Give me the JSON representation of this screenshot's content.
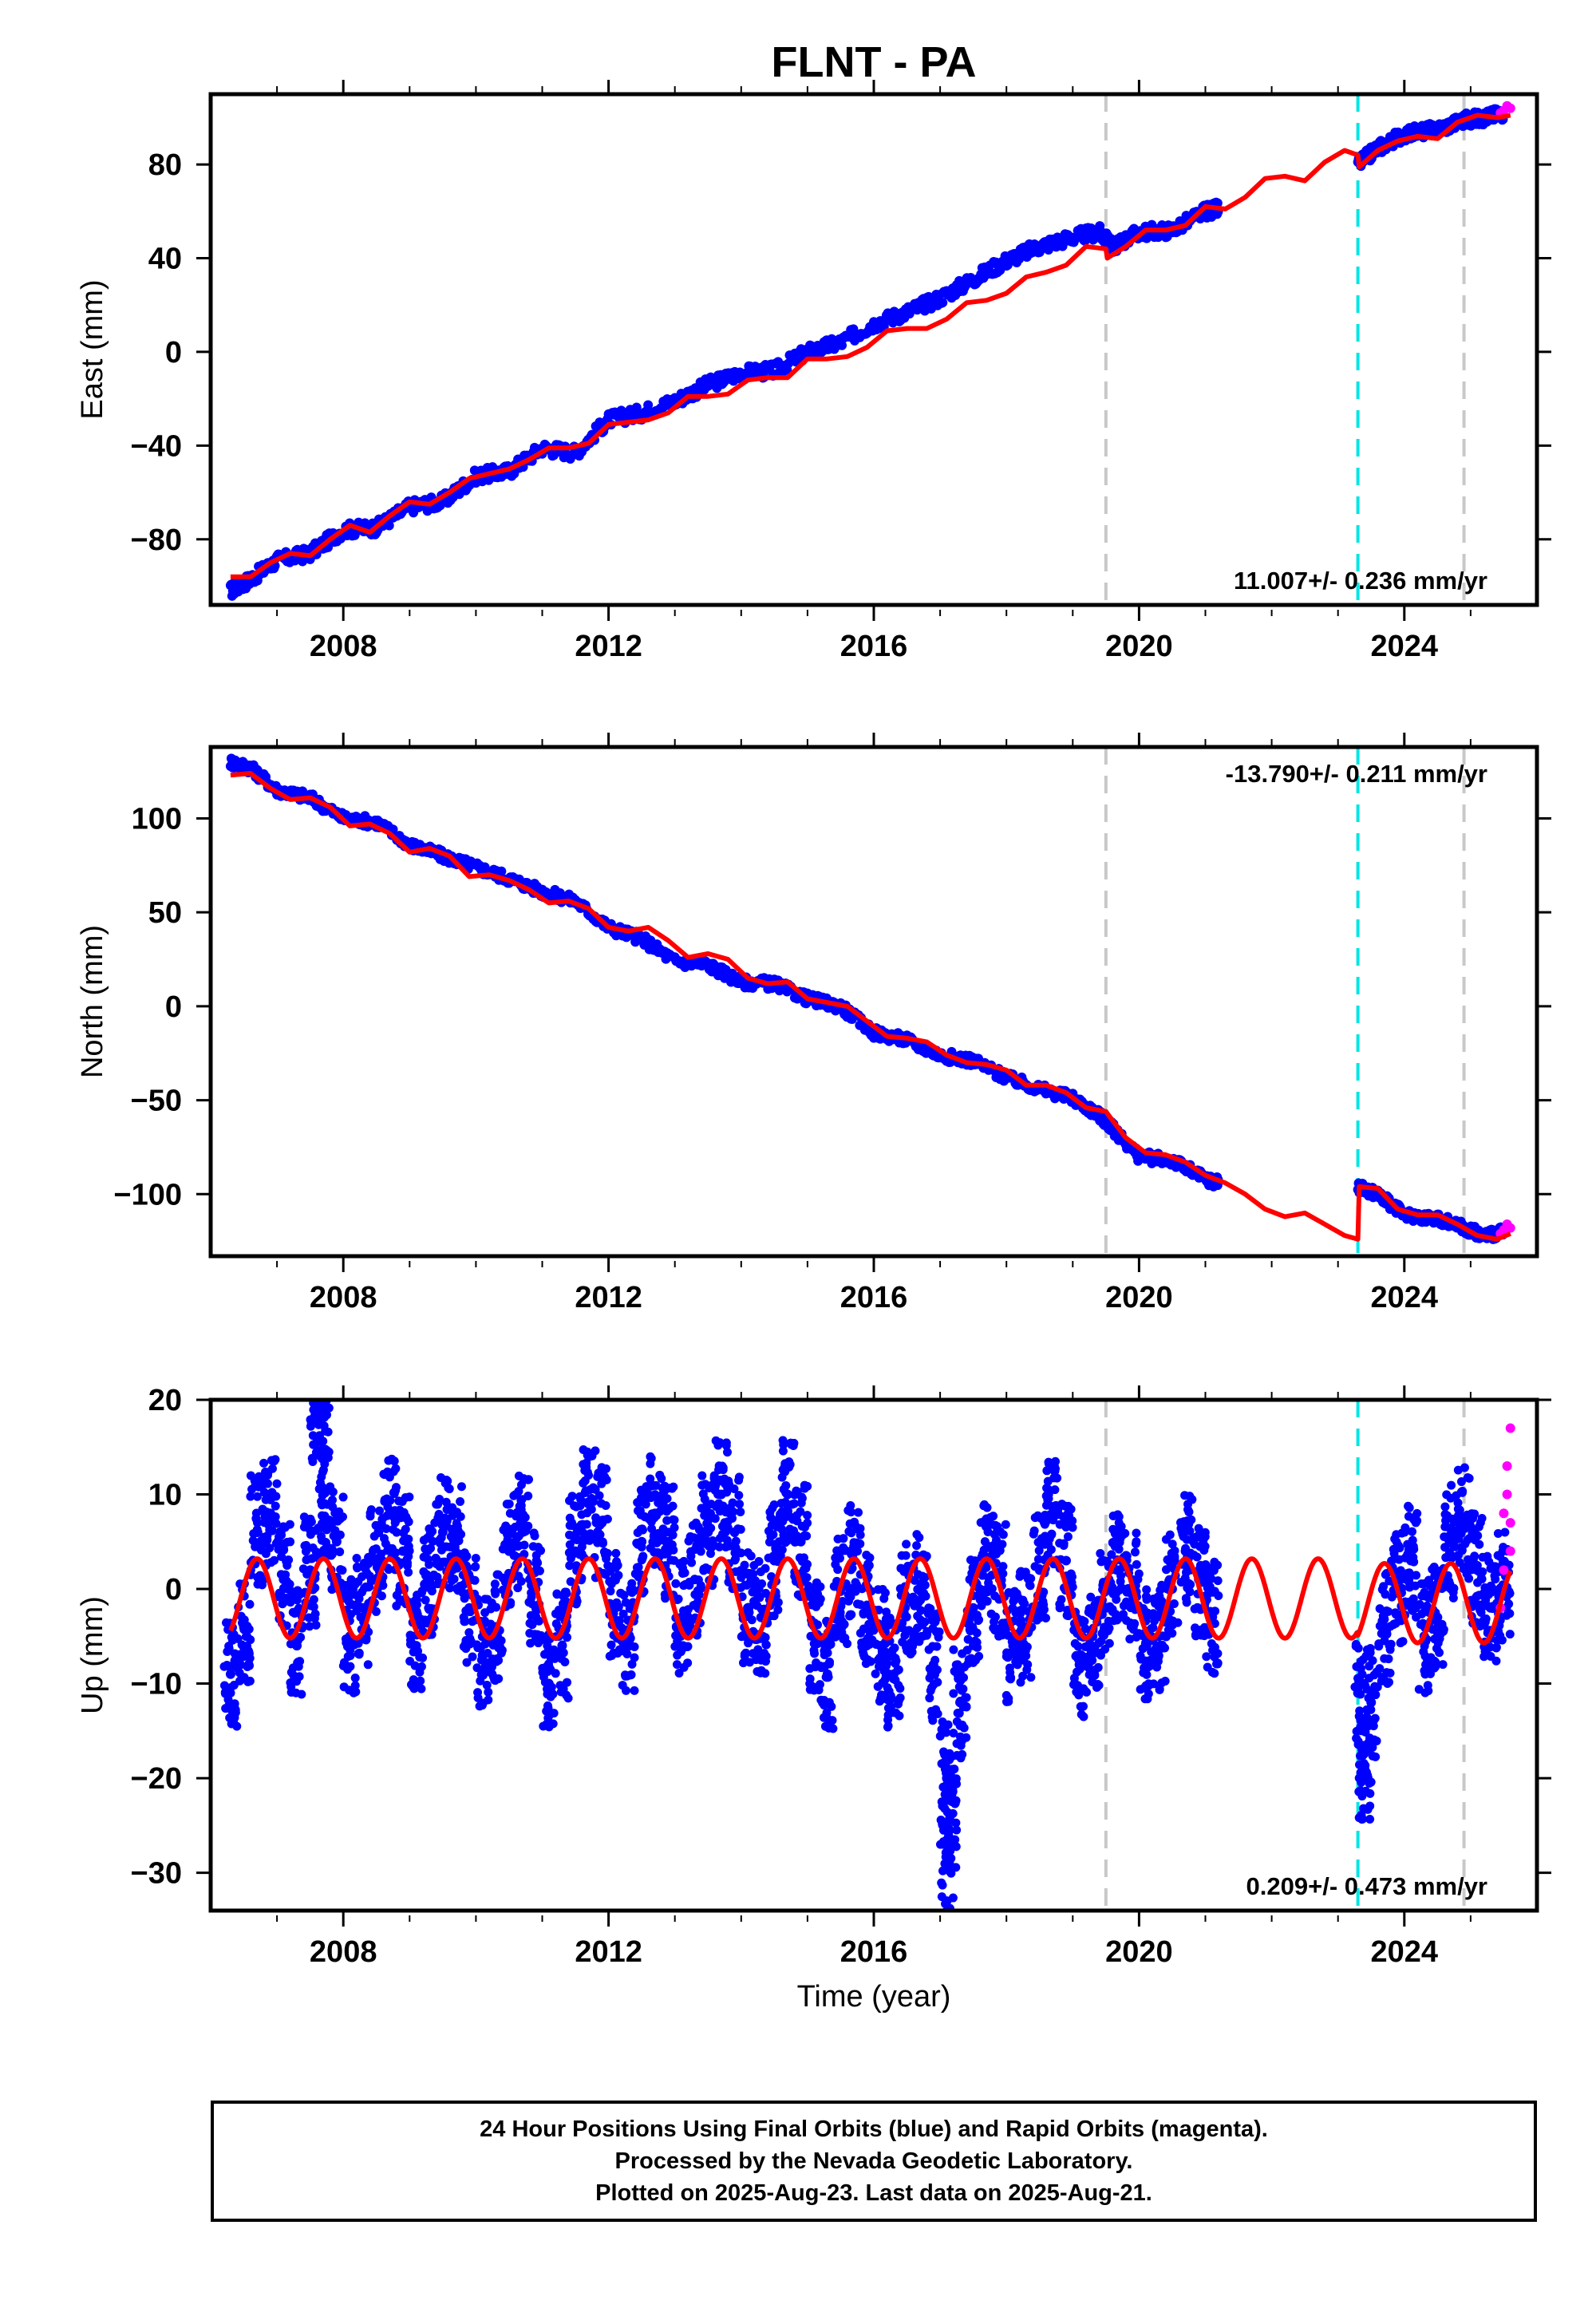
{
  "title": "FLNT - PA",
  "xlabel": "Time (year)",
  "colors": {
    "final_orbits": "#0000ff",
    "rapid_orbits": "#ff00ff",
    "model": "#ff0000",
    "antenna_change": "#c8c8c8",
    "earthquake": "#00e5e5"
  },
  "caption": {
    "line1": "24 Hour Positions Using Final Orbits (blue) and Rapid Orbits (magenta).",
    "line2": "Processed by the Nevada Geodetic Laboratory.",
    "line3": "Plotted on 2025-Aug-23. Last data on 2025-Aug-21."
  },
  "chart_data": [
    {
      "type": "scatter",
      "component": "east",
      "ylabel": "East (mm)",
      "rate_label": "11.007+/- 0.236 mm/yr",
      "rate_position": "bottom-right",
      "xlim": [
        2006.0,
        2026.0
      ],
      "ylim": [
        -108,
        110
      ],
      "xticks": [
        2008,
        2012,
        2016,
        2020,
        2024
      ],
      "yticks": [
        -80,
        -40,
        0,
        40,
        80
      ],
      "rate_mm_per_yr": 11.007,
      "rate_uncertainty": 0.236,
      "series": [
        {
          "name": "Final Orbits (blue)",
          "style": "points",
          "x": [
            2006.3,
            2006.6,
            2007.0,
            2007.5,
            2008.0,
            2008.5,
            2009.0,
            2009.5,
            2010.0,
            2010.5,
            2011.0,
            2011.5,
            2012.0,
            2012.5,
            2013.0,
            2013.5,
            2014.0,
            2014.5,
            2015.0,
            2015.5,
            2016.0,
            2016.5,
            2017.0,
            2017.5,
            2018.0,
            2018.5,
            2019.0,
            2019.4,
            2019.6,
            2020.0,
            2020.5,
            2021.0,
            2021.2,
            2023.3,
            2023.6,
            2024.0,
            2024.5,
            2024.9,
            2025.2,
            2025.5
          ],
          "y": [
            -102,
            -97,
            -89,
            -86,
            -76,
            -75,
            -66,
            -64,
            -53,
            -51,
            -41,
            -43,
            -29,
            -26,
            -21,
            -14,
            -9,
            -8,
            0,
            4,
            12,
            17,
            23,
            31,
            39,
            45,
            49,
            51,
            45,
            51,
            52,
            60,
            61,
            80,
            87,
            93,
            95,
            99,
            100,
            102
          ]
        },
        {
          "name": "Rapid Orbits (magenta)",
          "style": "points",
          "x": [
            2025.45,
            2025.5,
            2025.55,
            2025.6
          ],
          "y": [
            102,
            103,
            105,
            104
          ]
        },
        {
          "name": "Model",
          "style": "line",
          "x": [
            2006.3,
            2006.6,
            2006.9,
            2007.2,
            2007.5,
            2007.8,
            2008.1,
            2008.4,
            2008.7,
            2009.0,
            2009.3,
            2009.6,
            2009.9,
            2010.2,
            2010.5,
            2010.8,
            2011.1,
            2011.4,
            2011.7,
            2012.0,
            2012.3,
            2012.6,
            2012.9,
            2013.2,
            2013.5,
            2013.8,
            2014.1,
            2014.4,
            2014.7,
            2015.0,
            2015.3,
            2015.6,
            2015.9,
            2016.2,
            2016.5,
            2016.8,
            2017.1,
            2017.4,
            2017.7,
            2018.0,
            2018.3,
            2018.6,
            2018.9,
            2019.2,
            2019.5,
            2019.52,
            2019.8,
            2020.1,
            2020.4,
            2020.7,
            2021.0,
            2021.3,
            2021.6,
            2021.9,
            2022.2,
            2022.5,
            2022.8,
            2023.1,
            2023.3,
            2023.32,
            2023.6,
            2023.9,
            2024.2,
            2024.5,
            2024.8,
            2025.1,
            2025.4,
            2025.6
          ],
          "y": [
            -96,
            -96,
            -90,
            -86,
            -87,
            -80,
            -74,
            -77,
            -70,
            -64,
            -65,
            -60,
            -54,
            -52,
            -50,
            -46,
            -41,
            -41,
            -39,
            -31,
            -30,
            -29,
            -26,
            -19,
            -19,
            -18,
            -12,
            -11,
            -11,
            -3,
            -3,
            -2,
            2,
            9,
            10,
            10,
            14,
            21,
            22,
            25,
            32,
            34,
            37,
            45,
            44,
            40,
            45,
            52,
            52,
            54,
            62,
            61,
            66,
            74,
            75,
            73,
            81,
            86,
            84,
            79,
            86,
            90,
            92,
            91,
            98,
            101,
            100,
            101
          ]
        }
      ]
    },
    {
      "type": "scatter",
      "component": "north",
      "ylabel": "North (mm)",
      "rate_label": "-13.790+/- 0.211 mm/yr",
      "rate_position": "top-right",
      "xlim": [
        2006.0,
        2026.0
      ],
      "ylim": [
        -133,
        138
      ],
      "xticks": [
        2008,
        2012,
        2016,
        2020,
        2024
      ],
      "yticks": [
        -100,
        -50,
        0,
        50,
        100
      ],
      "rate_mm_per_yr": -13.79,
      "rate_uncertainty": 0.211,
      "series": [
        {
          "name": "Final Orbits (blue)",
          "style": "points",
          "x": [
            2006.3,
            2006.6,
            2007.0,
            2007.5,
            2008.0,
            2008.5,
            2009.0,
            2009.5,
            2010.0,
            2010.5,
            2011.0,
            2011.5,
            2012.0,
            2012.5,
            2013.0,
            2013.5,
            2014.0,
            2014.5,
            2015.0,
            2015.5,
            2016.0,
            2016.5,
            2017.0,
            2017.5,
            2018.0,
            2018.5,
            2019.0,
            2019.4,
            2019.6,
            2020.0,
            2020.5,
            2021.0,
            2021.2,
            2023.3,
            2023.6,
            2024.0,
            2024.5,
            2024.9,
            2025.2,
            2025.5
          ],
          "y": [
            130,
            127,
            115,
            111,
            100,
            98,
            86,
            80,
            74,
            68,
            61,
            56,
            42,
            36,
            24,
            22,
            13,
            12,
            4,
            0,
            -14,
            -18,
            -26,
            -29,
            -38,
            -44,
            -49,
            -58,
            -65,
            -80,
            -82,
            -92,
            -94,
            -96,
            -100,
            -111,
            -113,
            -118,
            -122,
            -120
          ]
        },
        {
          "name": "Rapid Orbits (magenta)",
          "style": "points",
          "x": [
            2025.45,
            2025.5,
            2025.55,
            2025.6
          ],
          "y": [
            -121,
            -119,
            -116,
            -118
          ]
        },
        {
          "name": "Model",
          "style": "line",
          "x": [
            2006.3,
            2006.6,
            2006.9,
            2007.2,
            2007.5,
            2007.8,
            2008.1,
            2008.4,
            2008.7,
            2009.0,
            2009.3,
            2009.6,
            2009.9,
            2010.2,
            2010.5,
            2010.8,
            2011.1,
            2011.4,
            2011.7,
            2012.0,
            2012.3,
            2012.6,
            2012.9,
            2013.2,
            2013.5,
            2013.8,
            2014.1,
            2014.4,
            2014.7,
            2015.0,
            2015.3,
            2015.6,
            2015.9,
            2016.2,
            2016.5,
            2016.8,
            2017.1,
            2017.4,
            2017.7,
            2018.0,
            2018.3,
            2018.6,
            2018.9,
            2019.2,
            2019.5,
            2019.52,
            2019.8,
            2020.1,
            2020.4,
            2020.7,
            2021.0,
            2021.3,
            2021.6,
            2021.9,
            2022.2,
            2022.5,
            2022.8,
            2023.1,
            2023.3,
            2023.32,
            2023.6,
            2023.9,
            2024.2,
            2024.5,
            2024.8,
            2025.1,
            2025.4,
            2025.6
          ],
          "y": [
            123,
            124,
            116,
            110,
            111,
            106,
            96,
            97,
            92,
            82,
            84,
            80,
            69,
            70,
            67,
            62,
            55,
            56,
            52,
            42,
            40,
            42,
            35,
            26,
            28,
            25,
            15,
            12,
            13,
            4,
            2,
            0,
            -8,
            -16,
            -17,
            -19,
            -26,
            -30,
            -31,
            -34,
            -42,
            -42,
            -46,
            -54,
            -56,
            -57,
            -70,
            -78,
            -79,
            -83,
            -90,
            -94,
            -100,
            -108,
            -112,
            -110,
            -116,
            -122,
            -124,
            -96,
            -97,
            -108,
            -111,
            -111,
            -116,
            -122,
            -124,
            -121
          ]
        }
      ]
    },
    {
      "type": "scatter",
      "component": "up",
      "ylabel": "Up (mm)",
      "rate_label": "0.209+/- 0.473 mm/yr",
      "rate_position": "bottom-right",
      "xlim": [
        2006.0,
        2026.0
      ],
      "ylim": [
        -34,
        20
      ],
      "xticks": [
        2008,
        2012,
        2016,
        2020,
        2024
      ],
      "yticks": [
        -30,
        -20,
        -10,
        0,
        10,
        20
      ],
      "rate_mm_per_yr": 0.209,
      "rate_uncertainty": 0.473,
      "series": [
        {
          "name": "Final Orbits (blue)",
          "style": "points",
          "x": [
            2006.3,
            2006.5,
            2006.7,
            2006.9,
            2007.1,
            2007.3,
            2007.5,
            2007.7,
            2007.9,
            2008.1,
            2008.3,
            2008.5,
            2008.7,
            2008.9,
            2009.1,
            2009.3,
            2009.5,
            2009.7,
            2009.9,
            2010.1,
            2010.3,
            2010.5,
            2010.7,
            2010.9,
            2011.1,
            2011.3,
            2011.5,
            2011.7,
            2011.9,
            2012.1,
            2012.3,
            2012.5,
            2012.7,
            2012.9,
            2013.1,
            2013.3,
            2013.5,
            2013.7,
            2013.9,
            2014.1,
            2014.3,
            2014.5,
            2014.7,
            2014.9,
            2015.1,
            2015.3,
            2015.5,
            2015.7,
            2015.9,
            2016.1,
            2016.3,
            2016.5,
            2016.7,
            2016.9,
            2017.1,
            2017.3,
            2017.5,
            2017.7,
            2017.9,
            2018.1,
            2018.3,
            2018.5,
            2018.7,
            2018.9,
            2019.1,
            2019.3,
            2019.5,
            2019.7,
            2019.9,
            2020.1,
            2020.3,
            2020.5,
            2020.7,
            2020.9,
            2021.1,
            2023.3,
            2023.5,
            2023.7,
            2023.9,
            2024.1,
            2024.3,
            2024.5,
            2024.7,
            2024.9,
            2025.1,
            2025.3,
            2025.5,
            2007.6,
            2007.7,
            2017.15,
            2017.1,
            2023.4
          ],
          "y": [
            -9,
            -4,
            6,
            8,
            1,
            -6,
            2,
            9,
            5,
            -5,
            -2,
            3,
            8,
            4,
            -6,
            1,
            6,
            5,
            -2,
            -7,
            -4,
            4,
            6,
            0,
            -10,
            -6,
            4,
            9,
            7,
            -2,
            -5,
            5,
            8,
            5,
            -3,
            1,
            6,
            10,
            6,
            -2,
            -3,
            3,
            10,
            5,
            -5,
            -9,
            0,
            3,
            -2,
            -6,
            -9,
            -1,
            0,
            -8,
            -20,
            -12,
            -2,
            3,
            1,
            -6,
            -4,
            2,
            8,
            3,
            -8,
            -5,
            -2,
            2,
            0,
            -6,
            -5,
            0,
            4,
            1,
            -3,
            -11,
            -12,
            -4,
            0,
            3,
            -5,
            -3,
            5,
            7,
            2,
            -2,
            0,
            19,
            19,
            -24,
            -33,
            -19
          ]
        },
        {
          "name": "Rapid Orbits (magenta)",
          "style": "points",
          "x": [
            2025.45,
            2025.5,
            2025.5,
            2025.55,
            2025.55,
            2025.6,
            2025.6,
            2025.6
          ],
          "y": [
            -2,
            2,
            8,
            10,
            13,
            4,
            17,
            7
          ]
        },
        {
          "name": "Model",
          "style": "sinusoid",
          "x": [
            2006.3,
            2025.6
          ],
          "y": [
            -5.5,
            4.5
          ],
          "annual_amplitude": 4.2
        }
      ]
    }
  ],
  "events": {
    "antenna_changes": [
      2019.5,
      2024.9
    ],
    "earthquake": [
      2023.3
    ]
  }
}
